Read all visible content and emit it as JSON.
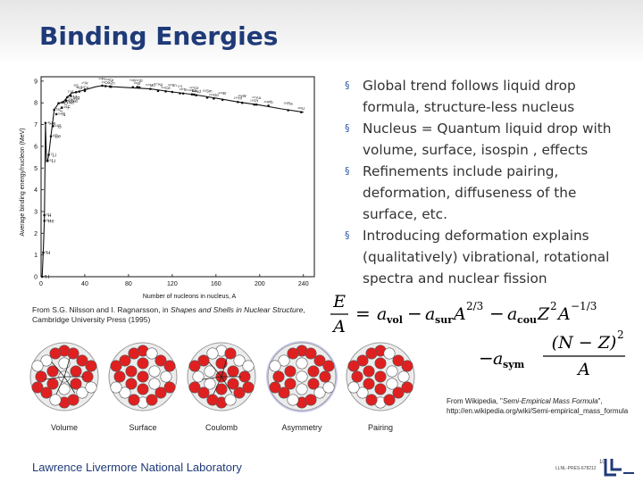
{
  "slide": {
    "title": "Binding Energies",
    "bullets": [
      "Global trend follows liquid drop formula, structure-less nucleus",
      "Nucleus = Quantum liquid drop with volume, surface, isospin , effects",
      "Refinements include pairing, deformation, diffuseness of the surface, etc.",
      "Introducing deformation explains (qualitatively) vibrational, rotational spectra and nuclear fission"
    ],
    "bullet_marker": "§",
    "citation_left_prefix": "From S.G. Nilsson and I. Ragnarsson, in ",
    "citation_left_italic": "Shapes and Shells in Nuclear Structure",
    "citation_left_suffix": ", Cambridge University Press (1995)",
    "citation_right_prefix": "From Wikipedia, \"",
    "citation_right_italic": "Semi-Empirical Mass Formula",
    "citation_right_suffix": "\", http://en.wikipedia.org/wiki/Semi-empirical_mass_formula",
    "footer_lab": "Lawrence Livermore National Laboratory",
    "footer_right": "LLNL-PRES-678212",
    "page_number": "10",
    "accent_color": "#1f3a78",
    "formula_parts": {
      "lhs_num": "E",
      "lhs_den": "A",
      "eq": "=",
      "a": "a",
      "sub_vol": "vol",
      "sub_sur": "sur",
      "sub_cou": "cou",
      "sub_sym": "sym",
      "minus": "−",
      "A": "A",
      "Z": "Z",
      "exp_23": "2/3",
      "exp_2": "2",
      "exp_m13": "−1/3",
      "frac_num": "(N − Z)",
      "frac_exp": "2",
      "frac_den": "A"
    },
    "molecule_labels": [
      "Volume",
      "Surface",
      "Coulomb",
      "Asymmetry",
      "Pairing"
    ]
  },
  "chart_data": {
    "type": "scatter",
    "xlabel": "Number of nucleons in nucleus, A",
    "ylabel": "Average binding energy/nucleon (MeV)",
    "xlim": [
      0,
      250
    ],
    "ylim": [
      0,
      9.2
    ],
    "x_ticks": [
      0,
      40,
      80,
      120,
      160,
      200,
      240
    ],
    "y_ticks": [
      0,
      1,
      2,
      3,
      4,
      5,
      6,
      7,
      8,
      9
    ],
    "grid": false,
    "points": [
      {
        "label": "¹H",
        "x": 1,
        "y": 0
      },
      {
        "label": "²H",
        "x": 2,
        "y": 1.11
      },
      {
        "label": "³H",
        "x": 3,
        "y": 2.83
      },
      {
        "label": "³He",
        "x": 3,
        "y": 2.57
      },
      {
        "label": "⁴He",
        "x": 4,
        "y": 7.07
      },
      {
        "label": "⁶Li",
        "x": 6,
        "y": 5.33
      },
      {
        "label": "⁷Li",
        "x": 7,
        "y": 5.61
      },
      {
        "label": "⁹Be",
        "x": 9,
        "y": 6.46
      },
      {
        "label": "¹¹B",
        "x": 11,
        "y": 6.93
      },
      {
        "label": "¹²C",
        "x": 12,
        "y": 7.68
      },
      {
        "label": "¹⁴N",
        "x": 14,
        "y": 7.48
      },
      {
        "label": "¹⁶O",
        "x": 16,
        "y": 7.98
      },
      {
        "label": "¹⁹F",
        "x": 19,
        "y": 7.78
      },
      {
        "label": "²⁰Ne",
        "x": 20,
        "y": 8.03
      },
      {
        "label": "²³Na",
        "x": 23,
        "y": 8.11
      },
      {
        "label": "²⁴Mg",
        "x": 24,
        "y": 8.26
      },
      {
        "label": "²⁷Al",
        "x": 27,
        "y": 8.33
      },
      {
        "label": "³²S",
        "x": 32,
        "y": 8.49
      },
      {
        "label": "³⁵Cl",
        "x": 35,
        "y": 8.52
      },
      {
        "label": "⁴⁰Ar",
        "x": 40,
        "y": 8.6
      },
      {
        "label": "⁴⁰Ca",
        "x": 40,
        "y": 8.55
      },
      {
        "label": "⁵⁶Fe",
        "x": 56,
        "y": 8.79
      },
      {
        "label": "⁵⁹Co",
        "x": 59,
        "y": 8.77
      },
      {
        "label": "⁶³Cu",
        "x": 63,
        "y": 8.75
      },
      {
        "label": "⁶⁴Zn",
        "x": 64,
        "y": 8.74
      },
      {
        "label": "⁸⁴Kr",
        "x": 84,
        "y": 8.72
      },
      {
        "label": "⁸⁸Sr",
        "x": 88,
        "y": 8.73
      },
      {
        "label": "⁹⁰Zr",
        "x": 90,
        "y": 8.71
      },
      {
        "label": "¹⁰⁰Mo",
        "x": 100,
        "y": 8.64
      },
      {
        "label": "¹⁰⁷Ag",
        "x": 107,
        "y": 8.55
      },
      {
        "label": "¹¹⁴Cd",
        "x": 114,
        "y": 8.53
      },
      {
        "label": "¹²⁰Sn",
        "x": 120,
        "y": 8.5
      },
      {
        "label": "¹³⁰Te",
        "x": 130,
        "y": 8.43
      },
      {
        "label": "¹²⁷I",
        "x": 127,
        "y": 8.44
      },
      {
        "label": "¹³⁸Ba",
        "x": 138,
        "y": 8.39
      },
      {
        "label": "¹⁴⁰Ce",
        "x": 140,
        "y": 8.38
      },
      {
        "label": "¹⁴²Nd",
        "x": 142,
        "y": 8.35
      },
      {
        "label": "¹⁵²Sm",
        "x": 152,
        "y": 8.24
      },
      {
        "label": "¹⁵⁸Gd",
        "x": 158,
        "y": 8.2
      },
      {
        "label": "¹⁶⁶Er",
        "x": 166,
        "y": 8.14
      },
      {
        "label": "¹⁸⁰Hf",
        "x": 180,
        "y": 8.04
      },
      {
        "label": "¹⁸⁴W",
        "x": 184,
        "y": 8.0
      },
      {
        "label": "¹⁹⁵Pt",
        "x": 195,
        "y": 7.92
      },
      {
        "label": "¹⁹⁷Au",
        "x": 197,
        "y": 7.92
      },
      {
        "label": "²⁰⁸Pb",
        "x": 208,
        "y": 7.87
      },
      {
        "label": "²²⁶Ra",
        "x": 226,
        "y": 7.66
      },
      {
        "label": "²³⁸U",
        "x": 238,
        "y": 7.57
      }
    ],
    "curve_x": [
      1,
      2,
      3,
      4,
      5,
      6,
      7,
      9,
      12,
      16,
      20,
      24,
      28,
      32,
      40,
      50,
      56,
      63,
      80,
      100,
      120,
      140,
      160,
      180,
      200,
      220,
      240
    ],
    "curve_y": [
      0,
      1.11,
      2.6,
      7.07,
      5.3,
      5.33,
      5.61,
      6.46,
      7.68,
      7.98,
      8.03,
      8.26,
      8.45,
      8.49,
      8.6,
      8.74,
      8.79,
      8.75,
      8.7,
      8.64,
      8.5,
      8.38,
      8.22,
      8.04,
      7.9,
      7.72,
      7.57
    ]
  }
}
